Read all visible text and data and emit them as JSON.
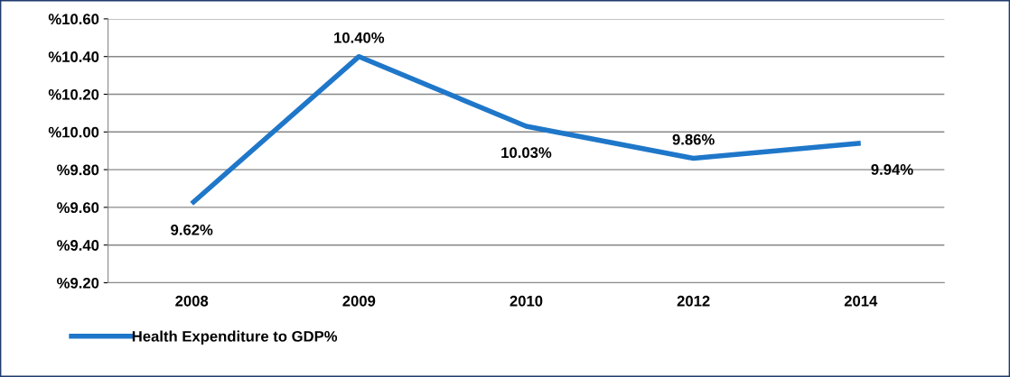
{
  "chart_data": {
    "type": "line",
    "categories": [
      "2008",
      "2009",
      "2010",
      "2012",
      "2014"
    ],
    "series": [
      {
        "name": "Health Expenditure to GDP%",
        "color": "#1f77c9",
        "values": [
          9.62,
          10.4,
          10.03,
          9.86,
          9.94
        ],
        "value_labels": [
          "9.62%",
          "10.40%",
          "10.03%",
          "9.86%",
          "9.94%"
        ]
      }
    ],
    "ylim": [
      9.2,
      10.6
    ],
    "yticks": [
      {
        "value": 9.2,
        "label": "%9.20"
      },
      {
        "value": 9.4,
        "label": "%9.40"
      },
      {
        "value": 9.6,
        "label": "%9.60"
      },
      {
        "value": 9.8,
        "label": "%9.80"
      },
      {
        "value": 10.0,
        "label": "%10.00"
      },
      {
        "value": 10.2,
        "label": "%10.20"
      },
      {
        "value": 10.4,
        "label": "%10.40"
      },
      {
        "value": 10.6,
        "label": "%10.60"
      }
    ],
    "grid": "y",
    "legend": "bottom left",
    "marker": "none",
    "line_style": "solid"
  }
}
